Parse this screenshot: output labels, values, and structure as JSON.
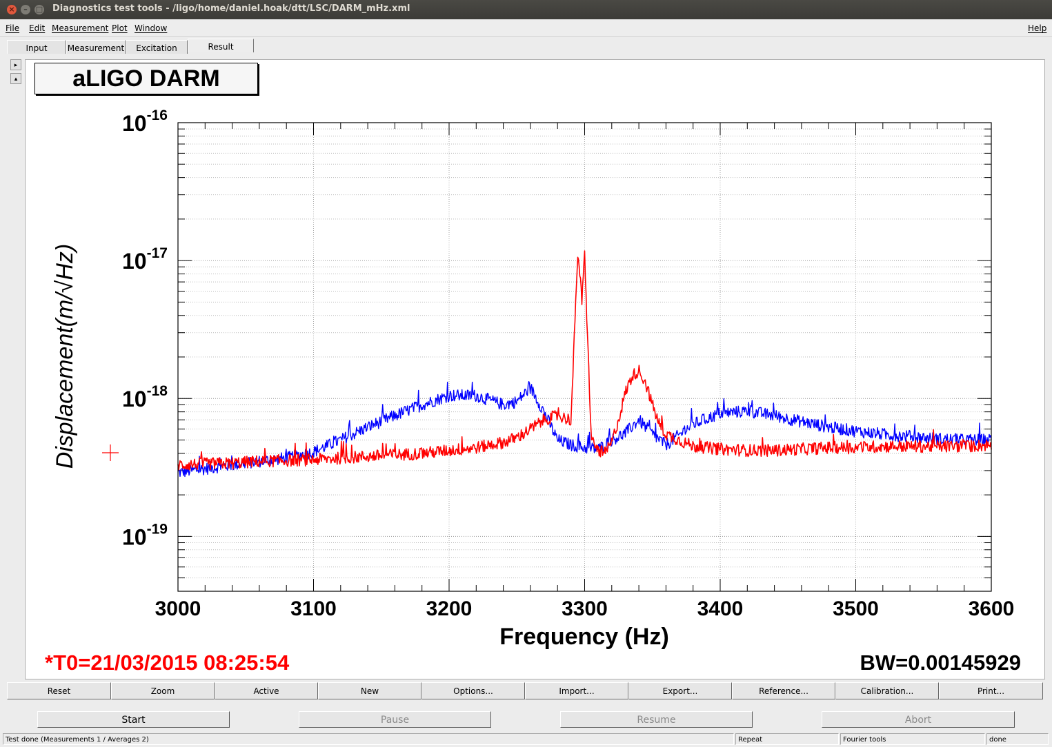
{
  "window": {
    "title": "Diagnostics test tools - /ligo/home/daniel.hoak/dtt/LSC/DARM_mHz.xml"
  },
  "menu": {
    "file": "File",
    "edit": "Edit",
    "measurement": "Measurement",
    "plot": "Plot",
    "window": "Window",
    "help": "Help"
  },
  "tabs": [
    "Input",
    "Measurement",
    "Excitation",
    "Result"
  ],
  "plot": {
    "title_box": "aLIGO DARM",
    "t0": "*T0=21/03/2015 08:25:54",
    "bw": "BW=0.00145929"
  },
  "chart_data": {
    "type": "line",
    "xlabel": "Frequency (Hz)",
    "ylabel": "Displacement(m/√Hz)",
    "xlim": [
      3000,
      3600
    ],
    "ylim": [
      4e-20,
      1e-16
    ],
    "yscale": "log",
    "grid": true,
    "x_ticks": [
      "3000",
      "3100",
      "3200",
      "3300",
      "3400",
      "3500",
      "3600"
    ],
    "y_ticks": [
      {
        "base": "10",
        "exp": "-16"
      },
      {
        "base": "10",
        "exp": "-17"
      },
      {
        "base": "10",
        "exp": "-18"
      },
      {
        "base": "10",
        "exp": "-19"
      }
    ],
    "series": [
      {
        "color": "#0000ff",
        "x": [
          3000,
          3020,
          3040,
          3060,
          3080,
          3100,
          3120,
          3140,
          3160,
          3180,
          3200,
          3220,
          3240,
          3250,
          3260,
          3270,
          3280,
          3290,
          3300,
          3310,
          3320,
          3330,
          3340,
          3350,
          3360,
          3380,
          3400,
          3420,
          3440,
          3460,
          3480,
          3500,
          3520,
          3540,
          3560,
          3580,
          3600
        ],
        "y": [
          2.9e-19,
          3.1e-19,
          3.3e-19,
          3.5e-19,
          3.7e-19,
          4.1e-19,
          5e-19,
          6.2e-19,
          7.5e-19,
          9e-19,
          1.05e-18,
          1.05e-18,
          9e-19,
          9.5e-19,
          1.2e-18,
          8e-19,
          5e-19,
          4.6e-19,
          4.4e-19,
          4.3e-19,
          5e-19,
          5.6e-19,
          7e-19,
          5.5e-19,
          4.6e-19,
          6.5e-19,
          7.8e-19,
          8.1e-19,
          7.5e-19,
          6.8e-19,
          6.2e-19,
          5.8e-19,
          5.5e-19,
          5.3e-19,
          5.1e-19,
          5e-19,
          5e-19
        ]
      },
      {
        "color": "#ff0000",
        "x": [
          3000,
          3020,
          3040,
          3060,
          3080,
          3100,
          3120,
          3140,
          3160,
          3180,
          3200,
          3220,
          3240,
          3250,
          3260,
          3270,
          3280,
          3290,
          3295,
          3298,
          3300,
          3302,
          3305,
          3310,
          3315,
          3320,
          3325,
          3330,
          3335,
          3340,
          3345,
          3350,
          3355,
          3360,
          3380,
          3400,
          3420,
          3440,
          3460,
          3480,
          3500,
          3520,
          3540,
          3560,
          3580,
          3600
        ],
        "y": [
          3.3e-19,
          3.35e-19,
          3.4e-19,
          3.5e-19,
          3.55e-19,
          3.6e-19,
          3.7e-19,
          3.8e-19,
          3.9e-19,
          4e-19,
          4.2e-19,
          4.4e-19,
          4.8e-19,
          5.2e-19,
          6e-19,
          7e-19,
          7.5e-19,
          7e-19,
          1.2e-17,
          5e-18,
          1.1e-17,
          3e-18,
          5e-19,
          4.2e-19,
          4e-19,
          4.8e-19,
          7e-19,
          1.1e-18,
          1.45e-18,
          1.6e-18,
          1.3e-18,
          9e-19,
          6.5e-19,
          5.5e-19,
          4.5e-19,
          4.3e-19,
          4.2e-19,
          4.2e-19,
          4.3e-19,
          4.4e-19,
          4.4e-19,
          4.5e-19,
          4.5e-19,
          4.5e-19,
          4.5e-19,
          4.6e-19
        ]
      }
    ]
  },
  "buttons": [
    "Reset",
    "Zoom",
    "Active",
    "New",
    "Options...",
    "Import...",
    "Export...",
    "Reference...",
    "Calibration...",
    "Print..."
  ],
  "controls": {
    "start": "Start",
    "pause": "Pause",
    "resume": "Resume",
    "abort": "Abort"
  },
  "status": {
    "message": "Test done (Measurements 1 / Averages 2)",
    "repeat": "Repeat",
    "tools": "Fourier tools",
    "state": "done"
  }
}
